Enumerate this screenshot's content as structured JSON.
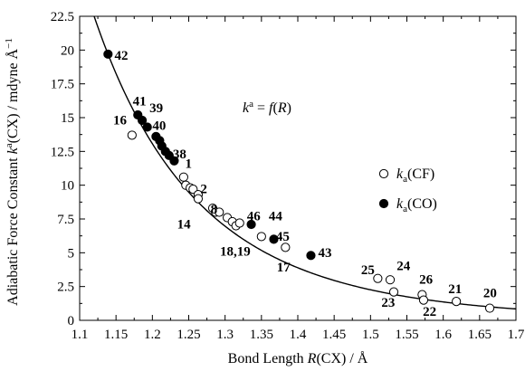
{
  "chart_data": {
    "type": "scatter",
    "xlabel_parts": [
      "Bond Length ",
      "R",
      "(CX) / Å"
    ],
    "ylabel_parts": [
      "Adiabatic Force Constant ",
      "k",
      "a",
      "(CX) / mdyne Å",
      "−1"
    ],
    "annotation_parts": [
      "k",
      "a",
      " = ",
      "f",
      "(",
      "R",
      ")"
    ],
    "xlim": [
      1.1,
      1.7
    ],
    "ylim": [
      0,
      22.5
    ],
    "x_ticks": [
      "1.1",
      "1.15",
      "1.2",
      "1.25",
      "1.3",
      "1.35",
      "1.4",
      "1.45",
      "1.5",
      "1.55",
      "1.6",
      "1.65",
      "1.7"
    ],
    "y_ticks": [
      "0",
      "2.5",
      "5",
      "7.5",
      "10",
      "12.5",
      "15",
      "17.5",
      "20",
      "22.5"
    ],
    "legend": [
      {
        "symbol": "open-circle",
        "parts": [
          "k",
          "a",
          "(CF)"
        ]
      },
      {
        "symbol": "filled-circle",
        "parts": [
          "k",
          "a",
          "(CO)"
        ]
      }
    ],
    "series": [
      {
        "name": "ka(CF)",
        "marker": "open-circle",
        "points": [
          [
            1.172,
            13.7
          ],
          [
            1.243,
            10.6
          ],
          [
            1.246,
            10.0
          ],
          [
            1.252,
            9.8
          ],
          [
            1.256,
            9.7
          ],
          [
            1.263,
            9.3
          ],
          [
            1.263,
            9.0
          ],
          [
            1.283,
            8.3
          ],
          [
            1.287,
            8.0
          ],
          [
            1.292,
            8.0
          ],
          [
            1.303,
            7.6
          ],
          [
            1.31,
            7.3
          ],
          [
            1.315,
            7.0
          ],
          [
            1.32,
            7.2
          ],
          [
            1.35,
            6.2
          ],
          [
            1.383,
            5.4
          ],
          [
            1.51,
            3.1
          ],
          [
            1.527,
            3.0
          ],
          [
            1.532,
            2.1
          ],
          [
            1.571,
            1.9
          ],
          [
            1.573,
            1.5
          ],
          [
            1.618,
            1.4
          ],
          [
            1.664,
            0.9
          ]
        ]
      },
      {
        "name": "ka(CO)",
        "marker": "filled-circle",
        "points": [
          [
            1.139,
            19.7
          ],
          [
            1.18,
            15.2
          ],
          [
            1.186,
            14.8
          ],
          [
            1.193,
            14.3
          ],
          [
            1.205,
            13.6
          ],
          [
            1.21,
            13.3
          ],
          [
            1.213,
            12.9
          ],
          [
            1.218,
            12.5
          ],
          [
            1.223,
            12.2
          ],
          [
            1.23,
            11.8
          ],
          [
            1.336,
            7.1
          ],
          [
            1.367,
            6.0
          ],
          [
            1.418,
            4.8
          ]
        ]
      }
    ],
    "point_labels": [
      {
        "text": "42",
        "x": 1.148,
        "y": 19.3
      },
      {
        "text": "41",
        "x": 1.173,
        "y": 15.9
      },
      {
        "text": "39",
        "x": 1.196,
        "y": 15.4
      },
      {
        "text": "16",
        "x": 1.146,
        "y": 14.5
      },
      {
        "text": "40",
        "x": 1.2,
        "y": 14.1
      },
      {
        "text": "38",
        "x": 1.228,
        "y": 12.0
      },
      {
        "text": "1",
        "x": 1.245,
        "y": 11.3
      },
      {
        "text": "2",
        "x": 1.266,
        "y": 9.4
      },
      {
        "text": "8",
        "x": 1.28,
        "y": 7.9
      },
      {
        "text": "14",
        "x": 1.234,
        "y": 6.8
      },
      {
        "text": "46",
        "x": 1.33,
        "y": 7.4
      },
      {
        "text": "44",
        "x": 1.36,
        "y": 7.4
      },
      {
        "text": "45",
        "x": 1.37,
        "y": 5.9
      },
      {
        "text": "18,19",
        "x": 1.293,
        "y": 4.8
      },
      {
        "text": "43",
        "x": 1.428,
        "y": 4.7
      },
      {
        "text": "17",
        "x": 1.371,
        "y": 3.6
      },
      {
        "text": "25",
        "x": 1.487,
        "y": 3.4
      },
      {
        "text": "24",
        "x": 1.536,
        "y": 3.7
      },
      {
        "text": "23",
        "x": 1.515,
        "y": 1.0
      },
      {
        "text": "26",
        "x": 1.567,
        "y": 2.7
      },
      {
        "text": "22",
        "x": 1.572,
        "y": 0.35
      },
      {
        "text": "21",
        "x": 1.607,
        "y": 2.0
      },
      {
        "text": "20",
        "x": 1.655,
        "y": 1.7
      }
    ]
  }
}
